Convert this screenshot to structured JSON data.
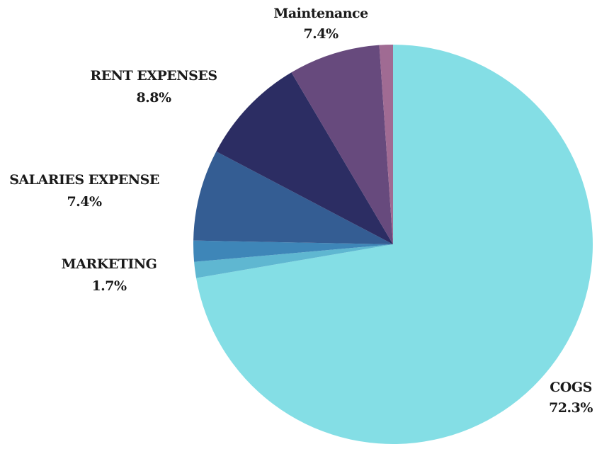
{
  "chart_data": {
    "type": "pie",
    "title": "",
    "slices": [
      {
        "label": "COGS",
        "value_label": "72.3%",
        "value": 72.3,
        "color": "#84dee5"
      },
      {
        "label": "",
        "value_label": "",
        "value": 1.3,
        "color": "#5fb7d1"
      },
      {
        "label": "MARKETING",
        "value_label": "1.7%",
        "value": 1.7,
        "color": "#3e86b8"
      },
      {
        "label": "SALARIES EXPENSE",
        "value_label": "7.4%",
        "value": 7.4,
        "color": "#345d93"
      },
      {
        "label": "RENT EXPENSES",
        "value_label": "8.8%",
        "value": 8.8,
        "color": "#2c2d63"
      },
      {
        "label": "Maintenance",
        "value_label": "7.4%",
        "value": 7.4,
        "color": "#674a7d"
      },
      {
        "label": "",
        "value_label": "",
        "value": 1.1,
        "color": "#a06b93"
      }
    ]
  }
}
